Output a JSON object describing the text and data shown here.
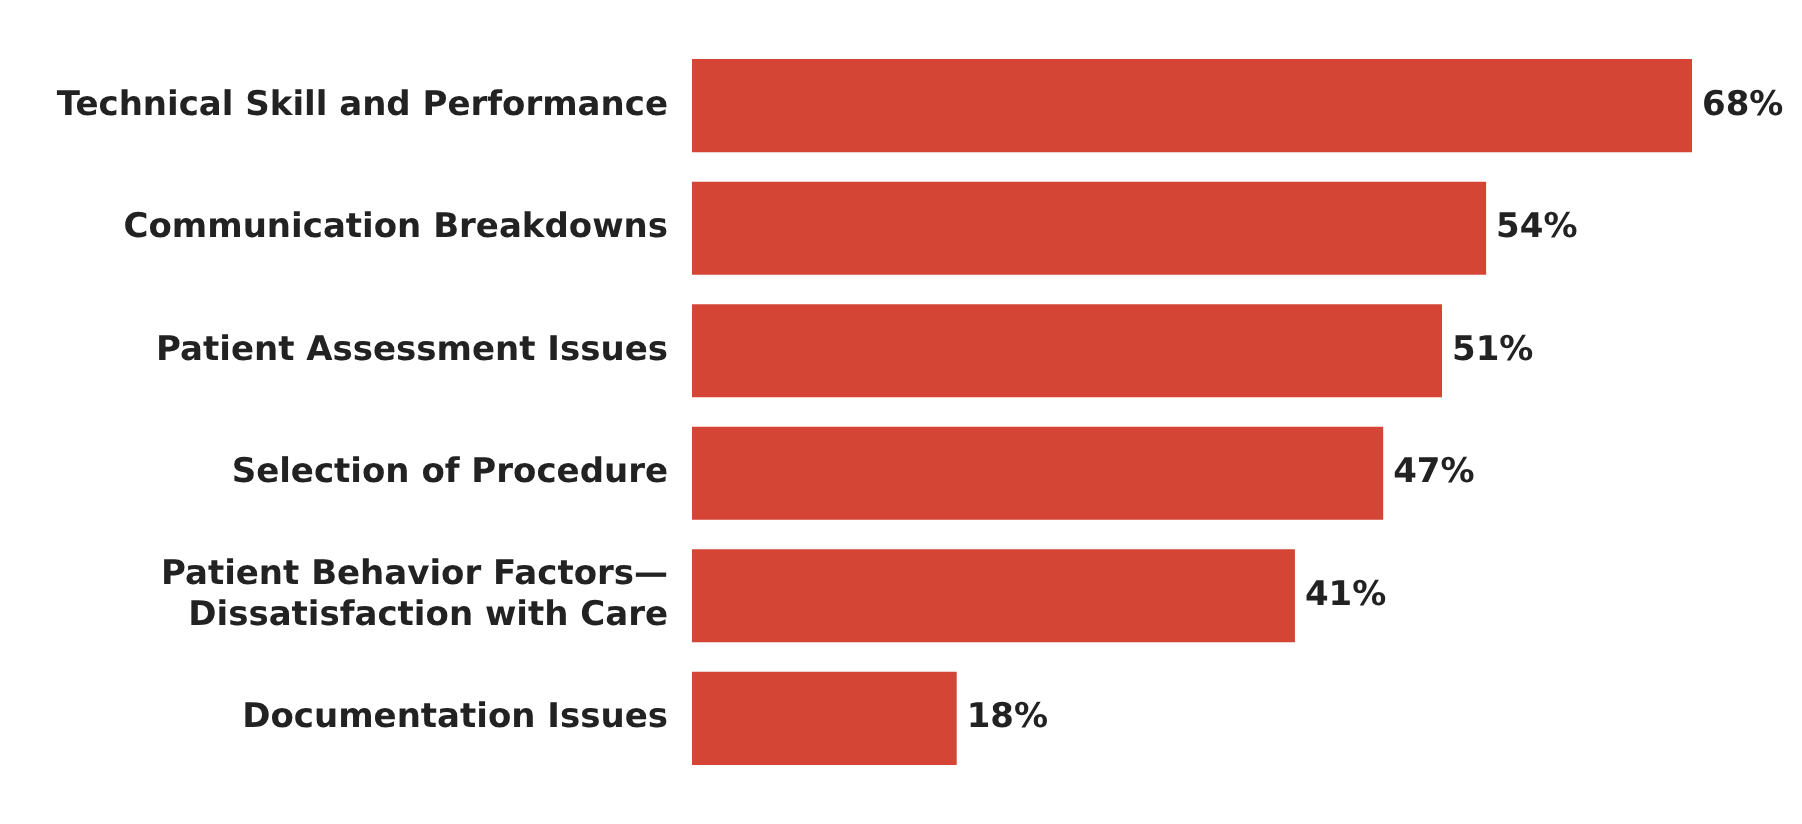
{
  "chart_data": {
    "type": "bar",
    "orientation": "horizontal",
    "categories": [
      "Technical Skill and Performance",
      "Communication Breakdowns",
      "Patient Assessment Issues",
      "Selection of Procedure",
      "Patient Behavior Factors—\nDissatisfaction with Care",
      "Documentation Issues"
    ],
    "values": [
      68,
      54,
      51,
      47,
      41,
      18
    ],
    "value_labels": [
      "68%",
      "54%",
      "51%",
      "47%",
      "41%",
      "18%"
    ],
    "color": "#d44535",
    "grid": false,
    "legend": false
  }
}
